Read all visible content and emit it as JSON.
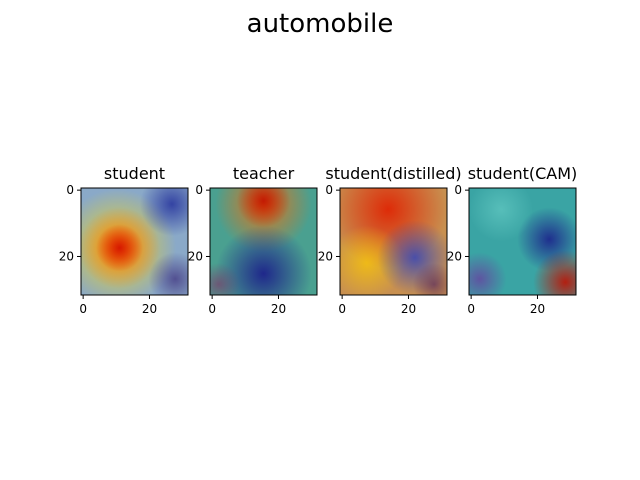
{
  "figure": {
    "title": "automobile"
  },
  "panels": [
    {
      "title": "student",
      "x_ticks": [
        "0",
        "20"
      ],
      "y_ticks": [
        "0",
        "20"
      ],
      "heatmap_base": "#8aa9c8",
      "blobs": [
        {
          "cx": 0.34,
          "cy": 0.56,
          "r": 0.55,
          "color": "#ffdd00",
          "opacity": 0.85
        },
        {
          "cx": 0.36,
          "cy": 0.56,
          "r": 0.38,
          "color": "#ff6a00",
          "opacity": 0.9
        },
        {
          "cx": 0.36,
          "cy": 0.56,
          "r": 0.22,
          "color": "#d41400",
          "opacity": 0.95
        },
        {
          "cx": 0.85,
          "cy": 0.15,
          "r": 0.3,
          "color": "#1e2a9a",
          "opacity": 0.8
        },
        {
          "cx": 0.88,
          "cy": 0.85,
          "r": 0.25,
          "color": "#3a2a7a",
          "opacity": 0.7
        }
      ]
    },
    {
      "title": "teacher",
      "x_ticks": [
        "0",
        "20"
      ],
      "y_ticks": [
        "0",
        "20"
      ],
      "heatmap_base": "#4aa090",
      "blobs": [
        {
          "cx": 0.5,
          "cy": 0.15,
          "r": 0.45,
          "color": "#ff6a00",
          "opacity": 0.85
        },
        {
          "cx": 0.5,
          "cy": 0.12,
          "r": 0.25,
          "color": "#c01000",
          "opacity": 0.9
        },
        {
          "cx": 0.5,
          "cy": 0.8,
          "r": 0.45,
          "color": "#1a1a8a",
          "opacity": 0.9
        },
        {
          "cx": 0.08,
          "cy": 0.9,
          "r": 0.2,
          "color": "#7a3a6a",
          "opacity": 0.7
        }
      ]
    },
    {
      "title": "student(distilled)",
      "x_ticks": [
        "0",
        "20"
      ],
      "y_ticks": [
        "0",
        "20"
      ],
      "heatmap_base": "#c89050",
      "blobs": [
        {
          "cx": 0.45,
          "cy": 0.2,
          "r": 0.55,
          "color": "#e02000",
          "opacity": 0.9
        },
        {
          "cx": 0.25,
          "cy": 0.7,
          "r": 0.35,
          "color": "#ffcc00",
          "opacity": 0.7
        },
        {
          "cx": 0.7,
          "cy": 0.65,
          "r": 0.35,
          "color": "#2a40c0",
          "opacity": 0.8
        },
        {
          "cx": 0.88,
          "cy": 0.9,
          "r": 0.2,
          "color": "#5a2a5a",
          "opacity": 0.7
        }
      ]
    },
    {
      "title": "student(CAM)",
      "x_ticks": [
        "0",
        "20"
      ],
      "y_ticks": [
        "0",
        "20"
      ],
      "heatmap_base": "#3aa4a4",
      "blobs": [
        {
          "cx": 0.75,
          "cy": 0.48,
          "r": 0.3,
          "color": "#1a1a8a",
          "opacity": 0.85
        },
        {
          "cx": 0.9,
          "cy": 0.88,
          "r": 0.3,
          "color": "#c01000",
          "opacity": 0.9
        },
        {
          "cx": 0.1,
          "cy": 0.85,
          "r": 0.25,
          "color": "#6a3aa0",
          "opacity": 0.75
        },
        {
          "cx": 0.3,
          "cy": 0.2,
          "r": 0.3,
          "color": "#6ad0c8",
          "opacity": 0.6
        }
      ]
    }
  ]
}
